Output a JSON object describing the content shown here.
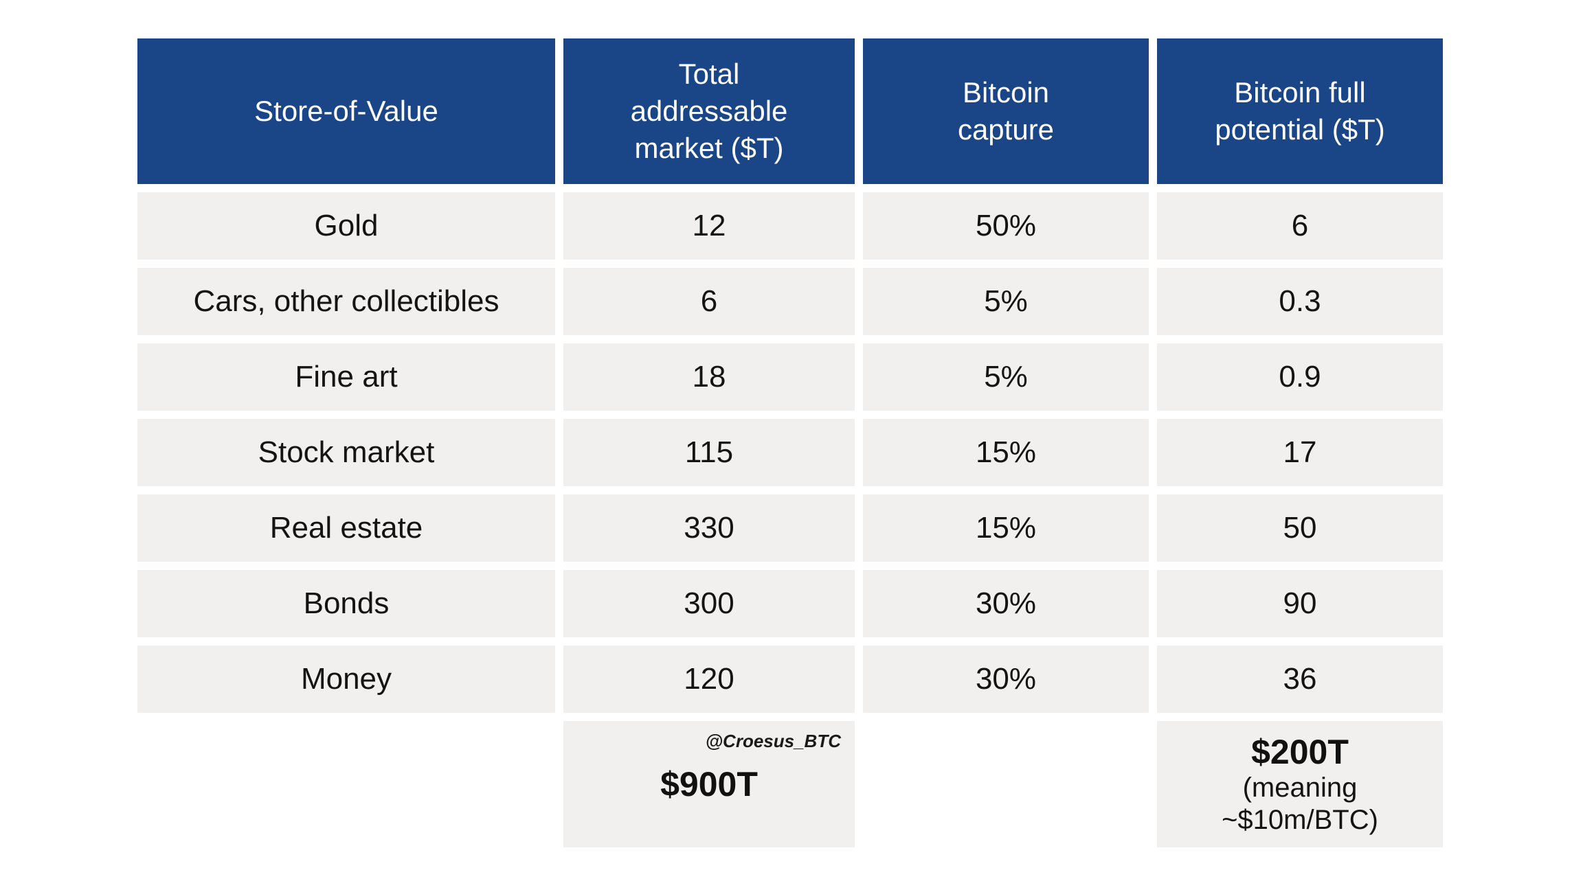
{
  "table": {
    "headers": [
      "Store-of-Value",
      "Total\naddressable\nmarket ($T)",
      "Bitcoin\ncapture",
      "Bitcoin full\npotential ($T)"
    ],
    "rows": [
      [
        "Gold",
        "12",
        "50%",
        "6"
      ],
      [
        "Cars, other collectibles",
        "6",
        "5%",
        "0.3"
      ],
      [
        "Fine art",
        "18",
        "5%",
        "0.9"
      ],
      [
        "Stock market",
        "115",
        "15%",
        "17"
      ],
      [
        "Real estate",
        "330",
        "15%",
        "50"
      ],
      [
        "Bonds",
        "300",
        "30%",
        "90"
      ],
      [
        "Money",
        "120",
        "30%",
        "36"
      ]
    ],
    "footer": {
      "watermark": "@Croesus_BTC",
      "tam_total": "$900T",
      "potential_total": "$200T",
      "potential_note": "(meaning\n~$10m/BTC)"
    },
    "colors": {
      "header_bg": "#1a4586",
      "header_text": "#ffffff",
      "row_bg": "#f1f0ee",
      "text": "#141414"
    }
  },
  "chart_data": {
    "type": "table",
    "title": "",
    "columns": [
      "Store-of-Value",
      "Total addressable market ($T)",
      "Bitcoin capture",
      "Bitcoin full potential ($T)"
    ],
    "rows": [
      [
        "Gold",
        12,
        "50%",
        6
      ],
      [
        "Cars, other collectibles",
        6,
        "5%",
        0.3
      ],
      [
        "Fine art",
        18,
        "5%",
        0.9
      ],
      [
        "Stock market",
        115,
        "15%",
        17
      ],
      [
        "Real estate",
        330,
        "15%",
        50
      ],
      [
        "Bonds",
        300,
        "30%",
        90
      ],
      [
        "Money",
        120,
        "30%",
        36
      ]
    ],
    "totals": {
      "total_addressable_market": "$900T",
      "bitcoin_full_potential": "$200T",
      "bitcoin_full_potential_note": "(meaning ~$10m/BTC)"
    },
    "watermark": "@Croesus_BTC"
  }
}
